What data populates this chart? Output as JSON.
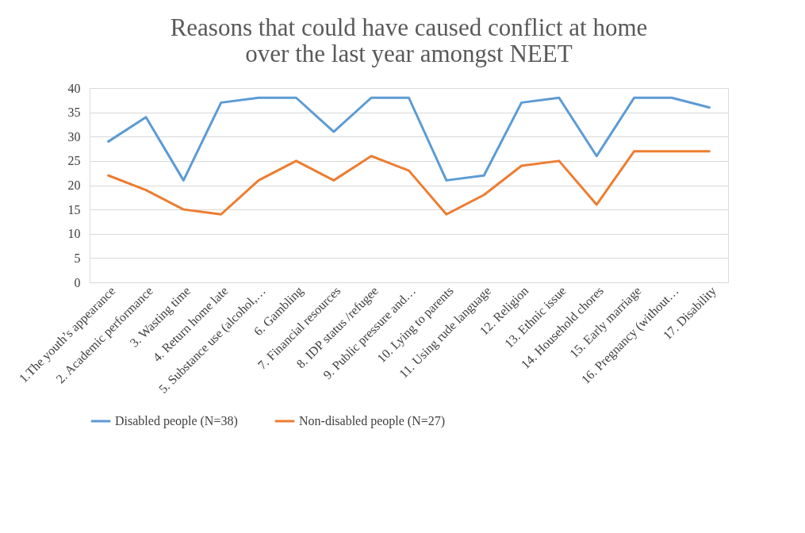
{
  "chart_data": {
    "type": "line",
    "title": "Reasons that could have caused conflict at home\nover the last year amongst NEET",
    "categories": [
      "1.The youth’s appearance",
      "2. Academic performance",
      "3. Wasting time",
      "4. Return home late",
      "5. Substance use (alcohol,…",
      "6. Gambling",
      "7. Financial resources",
      "8. IDP status /refugee",
      "9. Public pressure and…",
      "10. Lying to parents",
      "11. Using rude language",
      "12. Religion",
      "13. Ethnic issue",
      "14. Household chores",
      "15. Early marriage",
      "16. Pregnancy (without…",
      "17. Disability"
    ],
    "series": [
      {
        "name": "Disabled people (N=38)",
        "color": "#5b9bd5",
        "values": [
          29,
          34,
          21,
          37,
          38,
          38,
          31,
          38,
          38,
          21,
          22,
          37,
          38,
          26,
          38,
          38,
          36
        ]
      },
      {
        "name": "Non-disabled people (N=27)",
        "color": "#ed7d31",
        "values": [
          22,
          19,
          15,
          14,
          21,
          25,
          21,
          26,
          23,
          14,
          18,
          24,
          25,
          16,
          27,
          27,
          27
        ]
      }
    ],
    "ylim": [
      0,
      40
    ],
    "yticks": [
      0,
      5,
      10,
      15,
      20,
      25,
      30,
      35,
      40
    ],
    "grid": "y",
    "legend": "bottom",
    "marker": "none",
    "line_style": "solid"
  }
}
